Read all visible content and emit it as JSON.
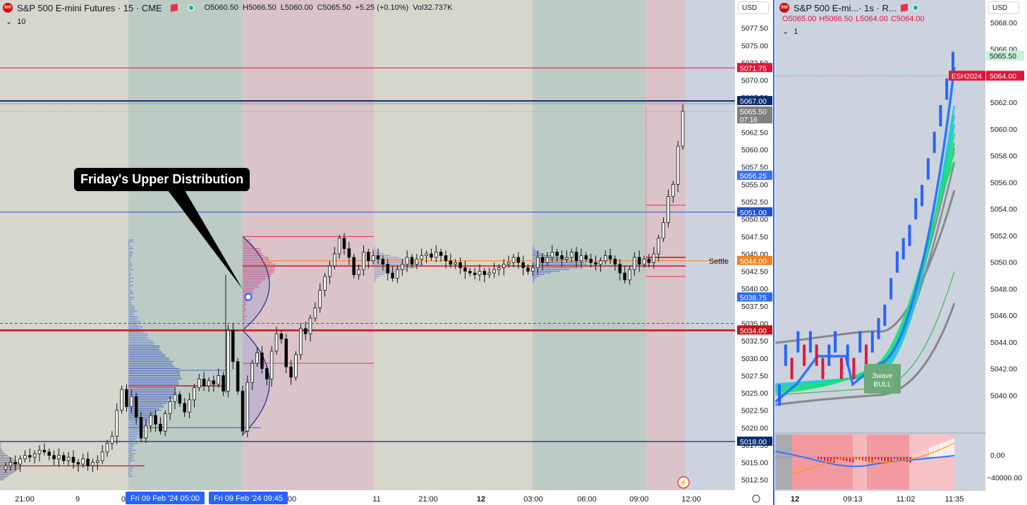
{
  "header": {
    "logo_text": "500",
    "title": "S&P 500 E-mini Futures · 15 · CME",
    "open": "O5060.50",
    "high": "H5066.50",
    "low": "L5060.00",
    "close": "C5065.50",
    "change": "+5.25 (+0.10%)",
    "volume": "Vol32.737K",
    "indicator_count": "10",
    "currency": "USD"
  },
  "right_header": {
    "title": "S&P 500 E-mi...· 1s · R...",
    "open": "O5065.00",
    "high": "H5066.50",
    "low": "L5064.00",
    "close": "C5064.00",
    "indicator_count": "1",
    "currency": "USD"
  },
  "annotation": {
    "callout_text": "Friday's Upper Distribution",
    "settle_label": "Settle"
  },
  "colors": {
    "session_gray": "#d7d6cd",
    "session_green": "#bdcbc5",
    "session_pink": "#dbc3ca",
    "bull": "#ffffff",
    "bear": "#000000",
    "level_red": "#c4151c",
    "level_blue": "#1e4fd8",
    "level_navy": "#0c2d6b",
    "profile_blue": "#2b46c4",
    "ribbon_cyan": "#1fc8d4",
    "ribbon_green": "#18e07a",
    "macd_orange": "#ff9800",
    "macd_blue": "#2979ff"
  },
  "chart_data": [
    {
      "type": "candlestick",
      "title": "S&P 500 E-mini Futures · 15 · CME",
      "ylim": [
        5011,
        5080
      ],
      "y_ticks": [
        "5077.50",
        "5075.00",
        "5072.50",
        "5070.00",
        "5067.50",
        "5065.00",
        "5062.50",
        "5060.00",
        "5057.50",
        "5055.00",
        "5052.50",
        "5050.00",
        "5047.50",
        "5045.00",
        "5042.50",
        "5040.00",
        "5037.50",
        "5035.00",
        "5032.50",
        "5030.00",
        "5027.50",
        "5025.00",
        "5022.50",
        "5020.00",
        "5017.50",
        "5015.00",
        "5012.50"
      ],
      "x_ticks": [
        "21:00",
        "9",
        "0",
        "05:00",
        "09:45",
        "00",
        "11",
        "21:00",
        "12",
        "03:00",
        "06:00",
        "09:00",
        "12:00"
      ],
      "x_highlight_labels": [
        "Fri 09 Feb '24   05:00",
        "Fri 09 Feb '24   09:45"
      ],
      "price_levels": [
        {
          "label": "5071.75",
          "value": 5071.75,
          "color": "#e0163a"
        },
        {
          "label": "5067.00",
          "value": 5067.0,
          "color": "#0c2d6b"
        },
        {
          "label": "5065.50",
          "value": 5065.5,
          "color": "#808080",
          "sub": "07:16"
        },
        {
          "label": "5056.25",
          "value": 5056.25,
          "color": "#3b6ef5"
        },
        {
          "label": "5051.00",
          "value": 5051.0,
          "color": "#1e4fd8"
        },
        {
          "label": "5044.00",
          "value": 5044.0,
          "color": "#f2831f"
        },
        {
          "label": "5038.75",
          "value": 5038.75,
          "color": "#2c6cf0"
        },
        {
          "label": "5034.00",
          "value": 5034.0,
          "color": "#c4151c"
        },
        {
          "label": "5018.00",
          "value": 5018.0,
          "color": "#0c2d6b"
        }
      ],
      "closes": [
        5014.5,
        5015,
        5014.75,
        5015.5,
        5016,
        5015.75,
        5016.25,
        5016.75,
        5016.5,
        5016,
        5015.5,
        5016,
        5015.25,
        5015.75,
        5015,
        5014.75,
        5015.5,
        5014.5,
        5015,
        5015.25,
        5016.5,
        5017.75,
        5018.75,
        5022.5,
        5025.5,
        5023,
        5024.5,
        5021.5,
        5018.5,
        5020.25,
        5021.75,
        5020.5,
        5019.5,
        5022,
        5023.75,
        5024.75,
        5023.5,
        5022.25,
        5024,
        5025.75,
        5027,
        5026,
        5026.75,
        5026.25,
        5027.5,
        5025.25,
        5034,
        5029.5,
        5025.25,
        5019.5,
        5026.5,
        5029.25,
        5030.75,
        5028.5,
        5027,
        5031,
        5033.5,
        5032.75,
        5028.75,
        5027.25,
        5030.5,
        5034.25,
        5033.5,
        5035.75,
        5037.25,
        5039.75,
        5041.75,
        5043.25,
        5045,
        5047.25,
        5045.75,
        5044.5,
        5042,
        5042.75,
        5045.25,
        5044,
        5044.75,
        5044.25,
        5043.5,
        5042.25,
        5041.5,
        5042.75,
        5043.5,
        5044.5,
        5043.5,
        5044.25,
        5044.75,
        5045,
        5044.5,
        5045.25,
        5044.75,
        5044,
        5043.5,
        5043.75,
        5043,
        5042.5,
        5042.25,
        5042,
        5042.5,
        5042,
        5042.25,
        5042.75,
        5043,
        5043.5,
        5043.75,
        5044.5,
        5043.75,
        5043,
        5042.5,
        5043,
        5044.5,
        5043.75,
        5044.5,
        5045.25,
        5044.75,
        5044.25,
        5044.5,
        5045.25,
        5044,
        5044.75,
        5044.25,
        5043.75,
        5043.5,
        5044,
        5044.75,
        5044.25,
        5043.5,
        5042.25,
        5041.25,
        5042.75,
        5044.5,
        5043.5,
        5044.25,
        5043.75,
        5045,
        5047.25,
        5049.5,
        5053.25,
        5055,
        5060.5,
        5065.5
      ]
    },
    {
      "type": "line",
      "title": "S&P 500 E-mi...· 1s · R...",
      "ylim": [
        5038,
        5069
      ],
      "y_ticks": [
        "5068.00",
        "5066.00",
        "5064.00",
        "5062.00",
        "5060.00",
        "5058.00",
        "5056.00",
        "5054.00",
        "5052.00",
        "5050.00",
        "5048.00",
        "5046.00",
        "5044.00",
        "5042.00",
        "5040.00"
      ],
      "x_ticks": [
        "12",
        "09:13",
        "11:02",
        "11:35"
      ],
      "price_levels": [
        {
          "label": "5065.50",
          "value": 5065.5,
          "color": "#c8f0d8"
        },
        {
          "label": "5064.00",
          "value": 5064.0,
          "color": "#e0163a"
        }
      ],
      "symbol_badge": "ESH2024",
      "signal_label": "3wave BULL",
      "indicator_ticks": [
        "0.00",
        "−40000.00"
      ],
      "series": [
        {
          "values": [
            5040,
            5043,
            5042,
            5044,
            5043,
            5044,
            5043,
            5042,
            5043,
            5044,
            5042,
            5043,
            5042,
            5044,
            5043,
            5044,
            5045,
            5046,
            5048,
            5050,
            5051,
            5052,
            5054,
            5055,
            5057,
            5059,
            5061,
            5063,
            5065
          ]
        }
      ]
    }
  ]
}
